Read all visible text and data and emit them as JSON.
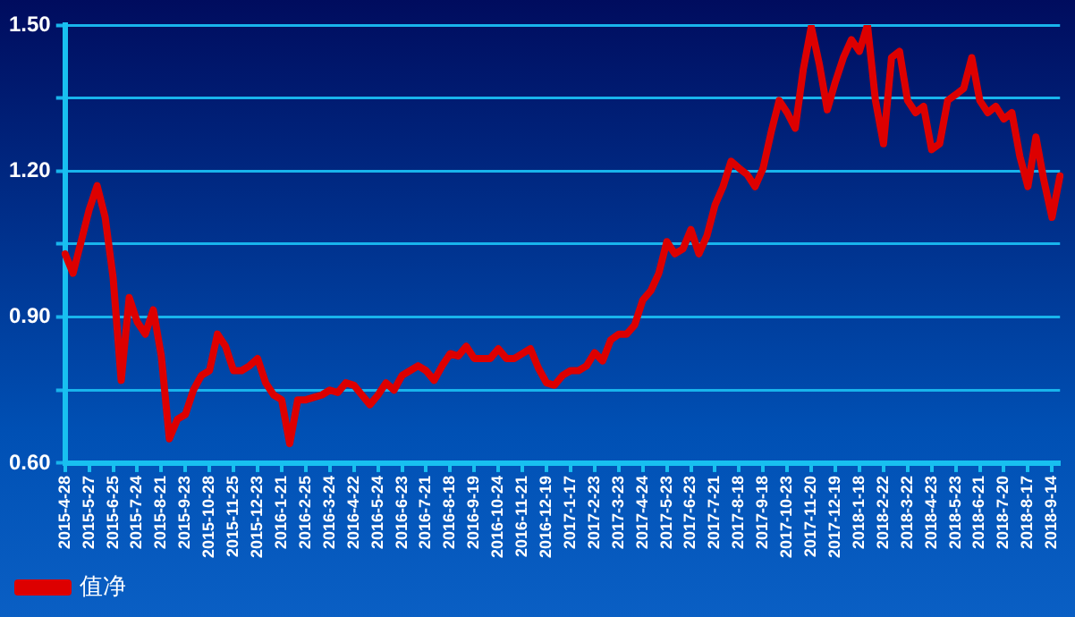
{
  "chart_data": {
    "type": "line",
    "categories": [
      "2015-4-28",
      null,
      null,
      "2015-5-27",
      null,
      null,
      "2015-6-25",
      null,
      null,
      "2015-7-24",
      null,
      null,
      "2015-8-21",
      null,
      null,
      "2015-9-23",
      null,
      null,
      "2015-10-28",
      null,
      null,
      "2015-11-25",
      null,
      null,
      "2015-12-23",
      null,
      null,
      "2016-1-21",
      null,
      null,
      "2016-2-25",
      null,
      null,
      "2016-3-24",
      null,
      null,
      "2016-4-22",
      null,
      null,
      "2016-5-24",
      null,
      null,
      "2016-6-23",
      null,
      null,
      "2016-7-21",
      null,
      null,
      "2016-8-18",
      null,
      null,
      "2016-9-19",
      null,
      null,
      "2016-10-24",
      null,
      null,
      "2016-11-21",
      null,
      null,
      "2016-12-19",
      null,
      null,
      "2017-1-17",
      null,
      null,
      "2017-2-23",
      null,
      null,
      "2017-3-23",
      null,
      null,
      "2017-4-24",
      null,
      null,
      "2017-5-23",
      null,
      null,
      "2017-6-23",
      null,
      null,
      "2017-7-21",
      null,
      null,
      "2017-8-18",
      null,
      null,
      "2017-9-18",
      null,
      null,
      "2017-10-23",
      null,
      null,
      "2017-11-20",
      null,
      null,
      "2017-12-19",
      null,
      null,
      "2018-1-18",
      null,
      null,
      "2018-2-22",
      null,
      null,
      "2018-3-22",
      null,
      null,
      "2018-4-23",
      null,
      null,
      "2018-5-23",
      null,
      null,
      "2018-6-21",
      null,
      null,
      "2018-7-20",
      null,
      null,
      "2018-8-17",
      null,
      null,
      "2018-9-14",
      null
    ],
    "series": [
      {
        "name": "值净",
        "color": "#dd0000",
        "values": [
          1.03,
          0.99,
          1.055,
          1.12,
          1.17,
          1.105,
          0.98,
          0.77,
          0.94,
          0.89,
          0.865,
          0.915,
          0.82,
          0.65,
          0.69,
          0.7,
          0.75,
          0.78,
          0.79,
          0.865,
          0.84,
          0.79,
          0.79,
          0.8,
          0.815,
          0.765,
          0.74,
          0.73,
          0.64,
          0.73,
          0.73,
          0.735,
          0.74,
          0.75,
          0.745,
          0.765,
          0.76,
          0.74,
          0.72,
          0.74,
          0.765,
          0.75,
          0.78,
          0.79,
          0.8,
          0.79,
          0.77,
          0.8,
          0.825,
          0.82,
          0.84,
          0.815,
          0.815,
          0.815,
          0.835,
          0.815,
          0.815,
          0.825,
          0.835,
          0.795,
          0.765,
          0.76,
          0.78,
          0.79,
          0.79,
          0.8,
          0.827,
          0.81,
          0.853,
          0.865,
          0.865,
          0.884,
          0.935,
          0.954,
          0.99,
          1.055,
          1.03,
          1.04,
          1.08,
          1.03,
          1.067,
          1.13,
          1.168,
          1.22,
          1.206,
          1.193,
          1.168,
          1.206,
          1.28,
          1.345,
          1.32,
          1.288,
          1.408,
          1.496,
          1.42,
          1.326,
          1.383,
          1.433,
          1.47,
          1.446,
          1.5,
          1.345,
          1.256,
          1.433,
          1.446,
          1.345,
          1.32,
          1.333,
          1.244,
          1.256,
          1.345,
          1.357,
          1.37,
          1.433,
          1.345,
          1.32,
          1.333,
          1.307,
          1.32,
          1.23,
          1.168,
          1.27,
          1.18,
          1.105,
          1.19
        ]
      }
    ],
    "ylim": [
      0.6,
      1.5
    ],
    "yticks": [
      {
        "value": 0.6,
        "label": "0.60"
      },
      {
        "value": 0.75,
        "label": null
      },
      {
        "value": 0.9,
        "label": "0.90"
      },
      {
        "value": 1.05,
        "label": null
      },
      {
        "value": 1.2,
        "label": "1.20"
      },
      {
        "value": 1.35,
        "label": null
      },
      {
        "value": 1.5,
        "label": "1.50"
      }
    ],
    "grid": "y",
    "legend": "bottom left",
    "marker": "none",
    "line_style": "solid"
  }
}
